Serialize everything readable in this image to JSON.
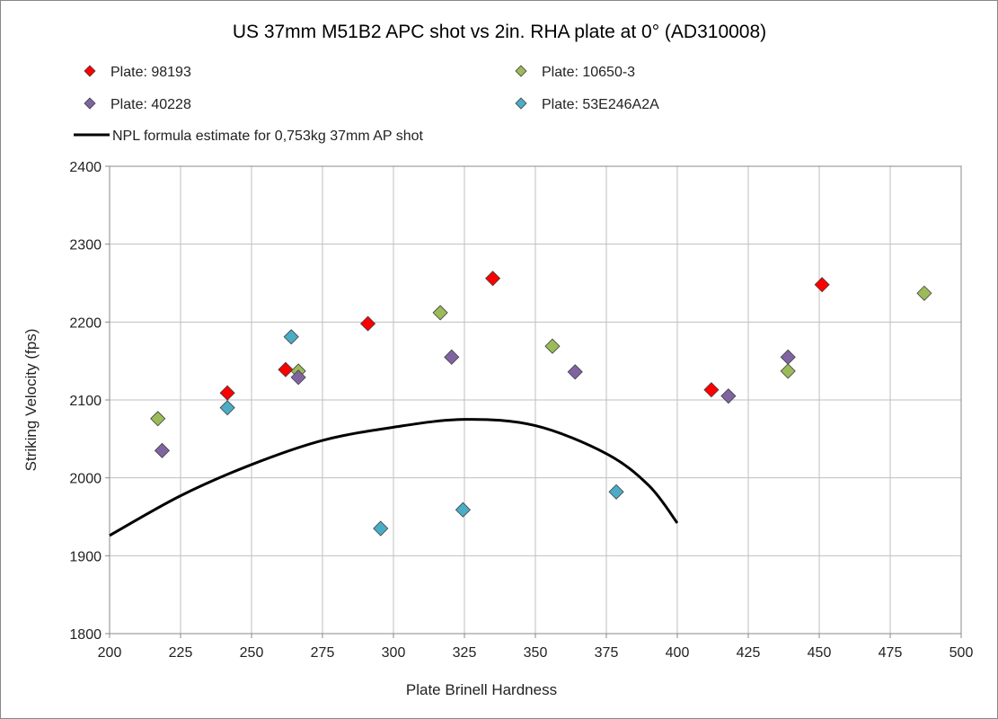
{
  "chart_data": {
    "type": "scatter",
    "title": "US 37mm M51B2 APC shot vs 2in. RHA plate at 0°  (AD310008)",
    "xlabel": "Plate Brinell Hardness",
    "ylabel": "Striking Velocity (fps)",
    "xlim": [
      200,
      500
    ],
    "ylim": [
      1800,
      2400
    ],
    "xticks": [
      200,
      225,
      250,
      275,
      300,
      325,
      350,
      375,
      400,
      425,
      450,
      475,
      500
    ],
    "yticks": [
      1800,
      1900,
      2000,
      2100,
      2200,
      2300,
      2400
    ],
    "grid": true,
    "legend_position": "top",
    "series": [
      {
        "name": "Plate: 98193",
        "color": "#ff0000",
        "marker": "diamond",
        "points": [
          [
            241.5,
            2109
          ],
          [
            262,
            2139
          ],
          [
            291,
            2198
          ],
          [
            335,
            2256
          ],
          [
            412,
            2113
          ],
          [
            451,
            2248
          ]
        ]
      },
      {
        "name": "Plate: 10650-3",
        "color": "#9bbb59",
        "marker": "diamond",
        "points": [
          [
            217,
            2076
          ],
          [
            266.5,
            2137
          ],
          [
            316.5,
            2212
          ],
          [
            356,
            2169
          ],
          [
            439,
            2137
          ],
          [
            487,
            2237
          ]
        ]
      },
      {
        "name": "Plate: 40228",
        "color": "#8064a2",
        "marker": "diamond",
        "points": [
          [
            218.5,
            2035
          ],
          [
            266.5,
            2129
          ],
          [
            320.5,
            2155
          ],
          [
            364,
            2136
          ],
          [
            439,
            2155
          ],
          [
            418,
            2105
          ]
        ]
      },
      {
        "name": "Plate: 53E246A2A",
        "color": "#4bacc6",
        "marker": "diamond",
        "points": [
          [
            241.5,
            2090
          ],
          [
            264,
            2181
          ],
          [
            295.5,
            1935
          ],
          [
            324.5,
            1959
          ],
          [
            378.5,
            1982
          ]
        ]
      },
      {
        "name": "NPL formula estimate for 0,753kg 37mm AP shot",
        "color": "#000000",
        "type": "line",
        "points": [
          [
            200,
            1926
          ],
          [
            225,
            1977
          ],
          [
            250,
            2017
          ],
          [
            275,
            2048
          ],
          [
            300,
            2065
          ],
          [
            325,
            2075
          ],
          [
            350,
            2067
          ],
          [
            375,
            2031
          ],
          [
            390,
            1990
          ],
          [
            400,
            1942
          ]
        ]
      }
    ]
  }
}
